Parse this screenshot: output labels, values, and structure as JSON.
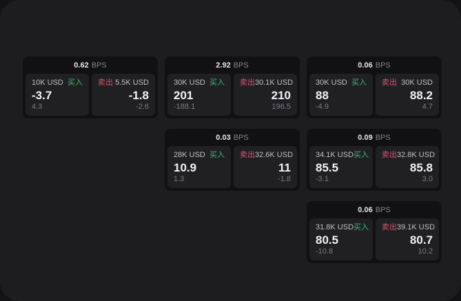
{
  "labels": {
    "buy": "买入",
    "sell": "卖出",
    "bps_unit": "BPS"
  },
  "colors": {
    "backdrop": "#131315",
    "page_background": "#1d1d1f",
    "card_background": "#111113",
    "panel_background": "#202023",
    "buy_green": "#3eba70",
    "sell_red": "#d8566b"
  },
  "cards": [
    {
      "row": 1,
      "col": 1,
      "bps": "0.62",
      "buy": {
        "amount": "10K USD",
        "value": "-3.7",
        "sub": "4.3"
      },
      "sell": {
        "amount": "5.5K USD",
        "value": "-1.8",
        "sub": "-2.6"
      }
    },
    {
      "row": 1,
      "col": 2,
      "bps": "2.92",
      "buy": {
        "amount": "30K USD",
        "value": "201",
        "sub": "-188.1"
      },
      "sell": {
        "amount": "30.1K USD",
        "value": "210",
        "sub": "196.5"
      }
    },
    {
      "row": 1,
      "col": 3,
      "bps": "0.06",
      "buy": {
        "amount": "30K USD",
        "value": "88",
        "sub": "-4.9"
      },
      "sell": {
        "amount": "30K USD",
        "value": "88.2",
        "sub": "4.7"
      }
    },
    {
      "row": 2,
      "col": 2,
      "bps": "0.03",
      "buy": {
        "amount": "28K USD",
        "value": "10.9",
        "sub": "1.3"
      },
      "sell": {
        "amount": "32.6K USD",
        "value": "11",
        "sub": "-1.8"
      }
    },
    {
      "row": 2,
      "col": 3,
      "bps": "0.09",
      "buy": {
        "amount": "34.1K USD",
        "value": "85.5",
        "sub": "-3.1"
      },
      "sell": {
        "amount": "32.8K USD",
        "value": "85.8",
        "sub": "3.0"
      }
    },
    {
      "row": 3,
      "col": 3,
      "bps": "0.06",
      "buy": {
        "amount": "31.8K USD",
        "value": "80.5",
        "sub": "-10.8"
      },
      "sell": {
        "amount": "39.1K USD",
        "value": "80.7",
        "sub": "10.2"
      }
    }
  ]
}
